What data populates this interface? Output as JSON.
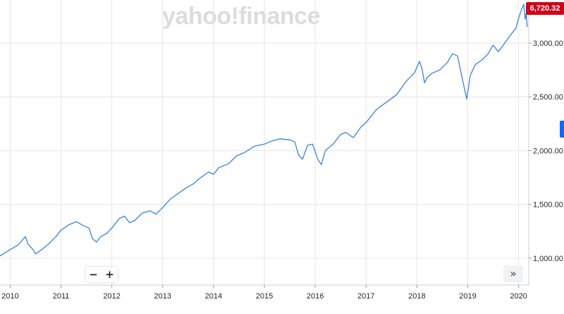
{
  "watermark": "yahoo!finance",
  "current_price": "6,720.32",
  "zoom": {
    "minus_label": "−",
    "plus_label": "+"
  },
  "expand_label": "»",
  "colors": {
    "line": "#3b7ee8",
    "grid": "#e6e6e6",
    "price_flag": "#d0021b",
    "handle": "#0f69ff"
  },
  "chart_data": {
    "type": "line",
    "title": "",
    "xlabel": "",
    "ylabel": "",
    "x_ticks": [
      "2010",
      "2011",
      "2012",
      "2013",
      "2014",
      "2015",
      "2016",
      "2017",
      "2018",
      "2019",
      "2020"
    ],
    "x_tick_years": [
      2010,
      2011,
      2012,
      2013,
      2014,
      2015,
      2016,
      2017,
      2018,
      2019,
      2020
    ],
    "y_ticks": [
      "1,000.00",
      "1,500.00",
      "2,000.00",
      "2,500.00",
      "3,000.00"
    ],
    "y_tick_values": [
      1000,
      1500,
      2000,
      2500,
      3000
    ],
    "xlim": [
      2009.8,
      2020.2
    ],
    "ylim": [
      750,
      3400
    ],
    "grid": true,
    "series": [
      {
        "x": [
          2009.8,
          2010.0,
          2010.15,
          2010.3,
          2010.35,
          2010.45,
          2010.5,
          2010.62,
          2010.75,
          2010.9,
          2011.0,
          2011.15,
          2011.3,
          2011.45,
          2011.55,
          2011.62,
          2011.7,
          2011.78,
          2011.9,
          2012.0,
          2012.15,
          2012.25,
          2012.35,
          2012.45,
          2012.6,
          2012.75,
          2012.87,
          2013.0,
          2013.15,
          2013.3,
          2013.45,
          2013.6,
          2013.75,
          2013.9,
          2014.0,
          2014.1,
          2014.3,
          2014.45,
          2014.6,
          2014.8,
          2015.0,
          2015.15,
          2015.3,
          2015.5,
          2015.6,
          2015.67,
          2015.75,
          2015.85,
          2015.95,
          2016.05,
          2016.12,
          2016.2,
          2016.35,
          2016.5,
          2016.6,
          2016.75,
          2016.9,
          2017.0,
          2017.2,
          2017.4,
          2017.6,
          2017.8,
          2017.95,
          2018.05,
          2018.1,
          2018.15,
          2018.2,
          2018.3,
          2018.45,
          2018.6,
          2018.7,
          2018.8,
          2018.9,
          2018.98,
          2019.05,
          2019.15,
          2019.3,
          2019.4,
          2019.5,
          2019.6,
          2019.7,
          2019.85,
          2019.95,
          2020.0,
          2020.05,
          2020.1,
          2020.13,
          2020.15,
          2020.17
        ],
        "y": [
          1020,
          1080,
          1120,
          1200,
          1130,
          1080,
          1040,
          1080,
          1130,
          1200,
          1260,
          1310,
          1340,
          1300,
          1280,
          1180,
          1150,
          1200,
          1230,
          1280,
          1370,
          1390,
          1330,
          1350,
          1420,
          1440,
          1410,
          1470,
          1550,
          1600,
          1650,
          1690,
          1750,
          1800,
          1780,
          1840,
          1880,
          1950,
          1980,
          2040,
          2060,
          2090,
          2110,
          2100,
          2080,
          1960,
          1920,
          2050,
          2060,
          1920,
          1870,
          2000,
          2060,
          2150,
          2170,
          2120,
          2220,
          2260,
          2380,
          2450,
          2520,
          2650,
          2720,
          2830,
          2760,
          2630,
          2680,
          2720,
          2750,
          2820,
          2900,
          2880,
          2650,
          2480,
          2700,
          2800,
          2850,
          2900,
          2980,
          2920,
          2980,
          3080,
          3140,
          3230,
          3300,
          3360,
          3220,
          3280,
          3150
        ]
      }
    ]
  }
}
